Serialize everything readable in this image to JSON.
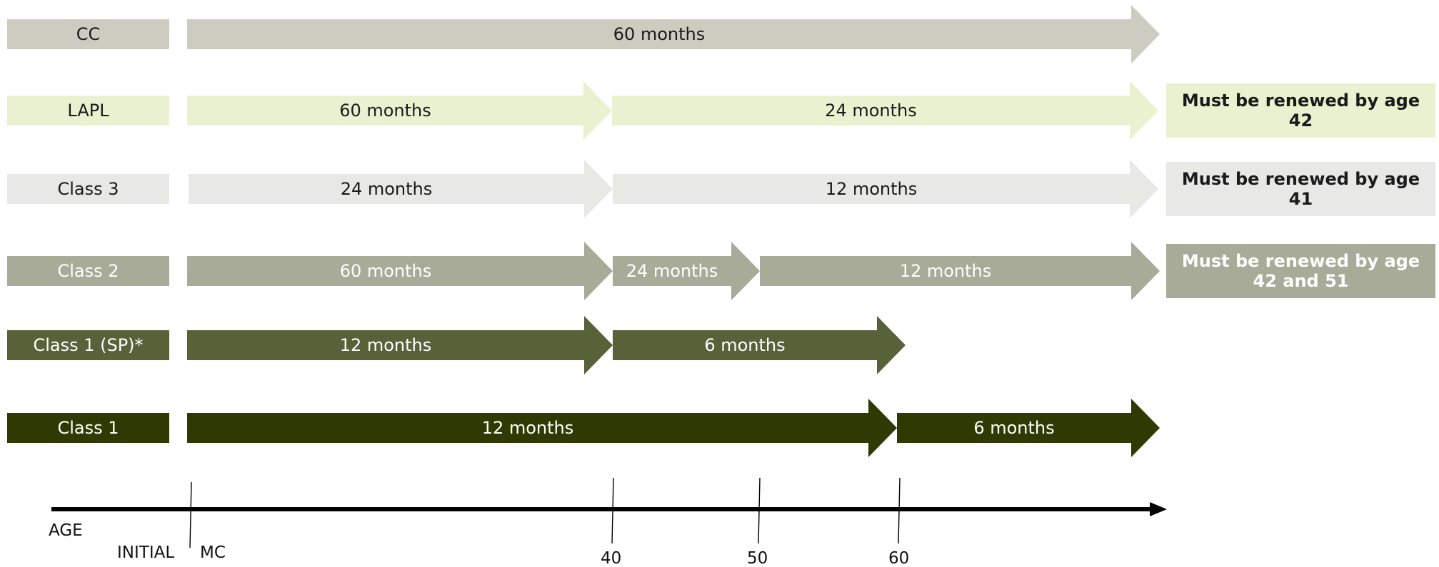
{
  "rows": [
    {
      "id": "cc",
      "label": "CC",
      "fill": "#cccdc0",
      "text_color": "#1a1a1a",
      "segments": [
        {
          "label": "60 months"
        }
      ],
      "note": null
    },
    {
      "id": "lapl",
      "label": "LAPL",
      "fill": "#eaf1d0",
      "text_color": "#1a1a1a",
      "segments": [
        {
          "label": "60 months"
        },
        {
          "label": "24 months"
        }
      ],
      "note": {
        "line1": "Must be renewed by age",
        "line2": "42"
      }
    },
    {
      "id": "class3",
      "label": "Class 3",
      "fill": "#e8e9e4",
      "text_color": "#1a1a1a",
      "segments": [
        {
          "label": "24 months"
        },
        {
          "label": "12 months"
        }
      ],
      "note": {
        "line1": "Must be renewed by age",
        "line2": "41"
      }
    },
    {
      "id": "class2",
      "label": "Class 2",
      "fill": "#a8ab97",
      "text_color": "#ffffff",
      "segments": [
        {
          "label": "60 months"
        },
        {
          "label": "24 months"
        },
        {
          "label": "12 months"
        }
      ],
      "note": {
        "line1": "Must be renewed by age",
        "line2": "42 and 51"
      }
    },
    {
      "id": "class1sp",
      "label": "Class 1 (SP)*",
      "fill": "#576238",
      "text_color": "#ffffff",
      "segments": [
        {
          "label": "12 months"
        },
        {
          "label": "6 months"
        }
      ],
      "note": null
    },
    {
      "id": "class1",
      "label": "Class 1",
      "fill": "#2f3a03",
      "text_color": "#ffffff",
      "segments": [
        {
          "label": "12 months"
        },
        {
          "label": "6 months"
        }
      ],
      "note": null
    }
  ],
  "axis": {
    "label": "AGE",
    "initial_label_left": "INITIAL",
    "initial_label_right": "MC",
    "ticks": [
      "40",
      "50",
      "60"
    ]
  }
}
